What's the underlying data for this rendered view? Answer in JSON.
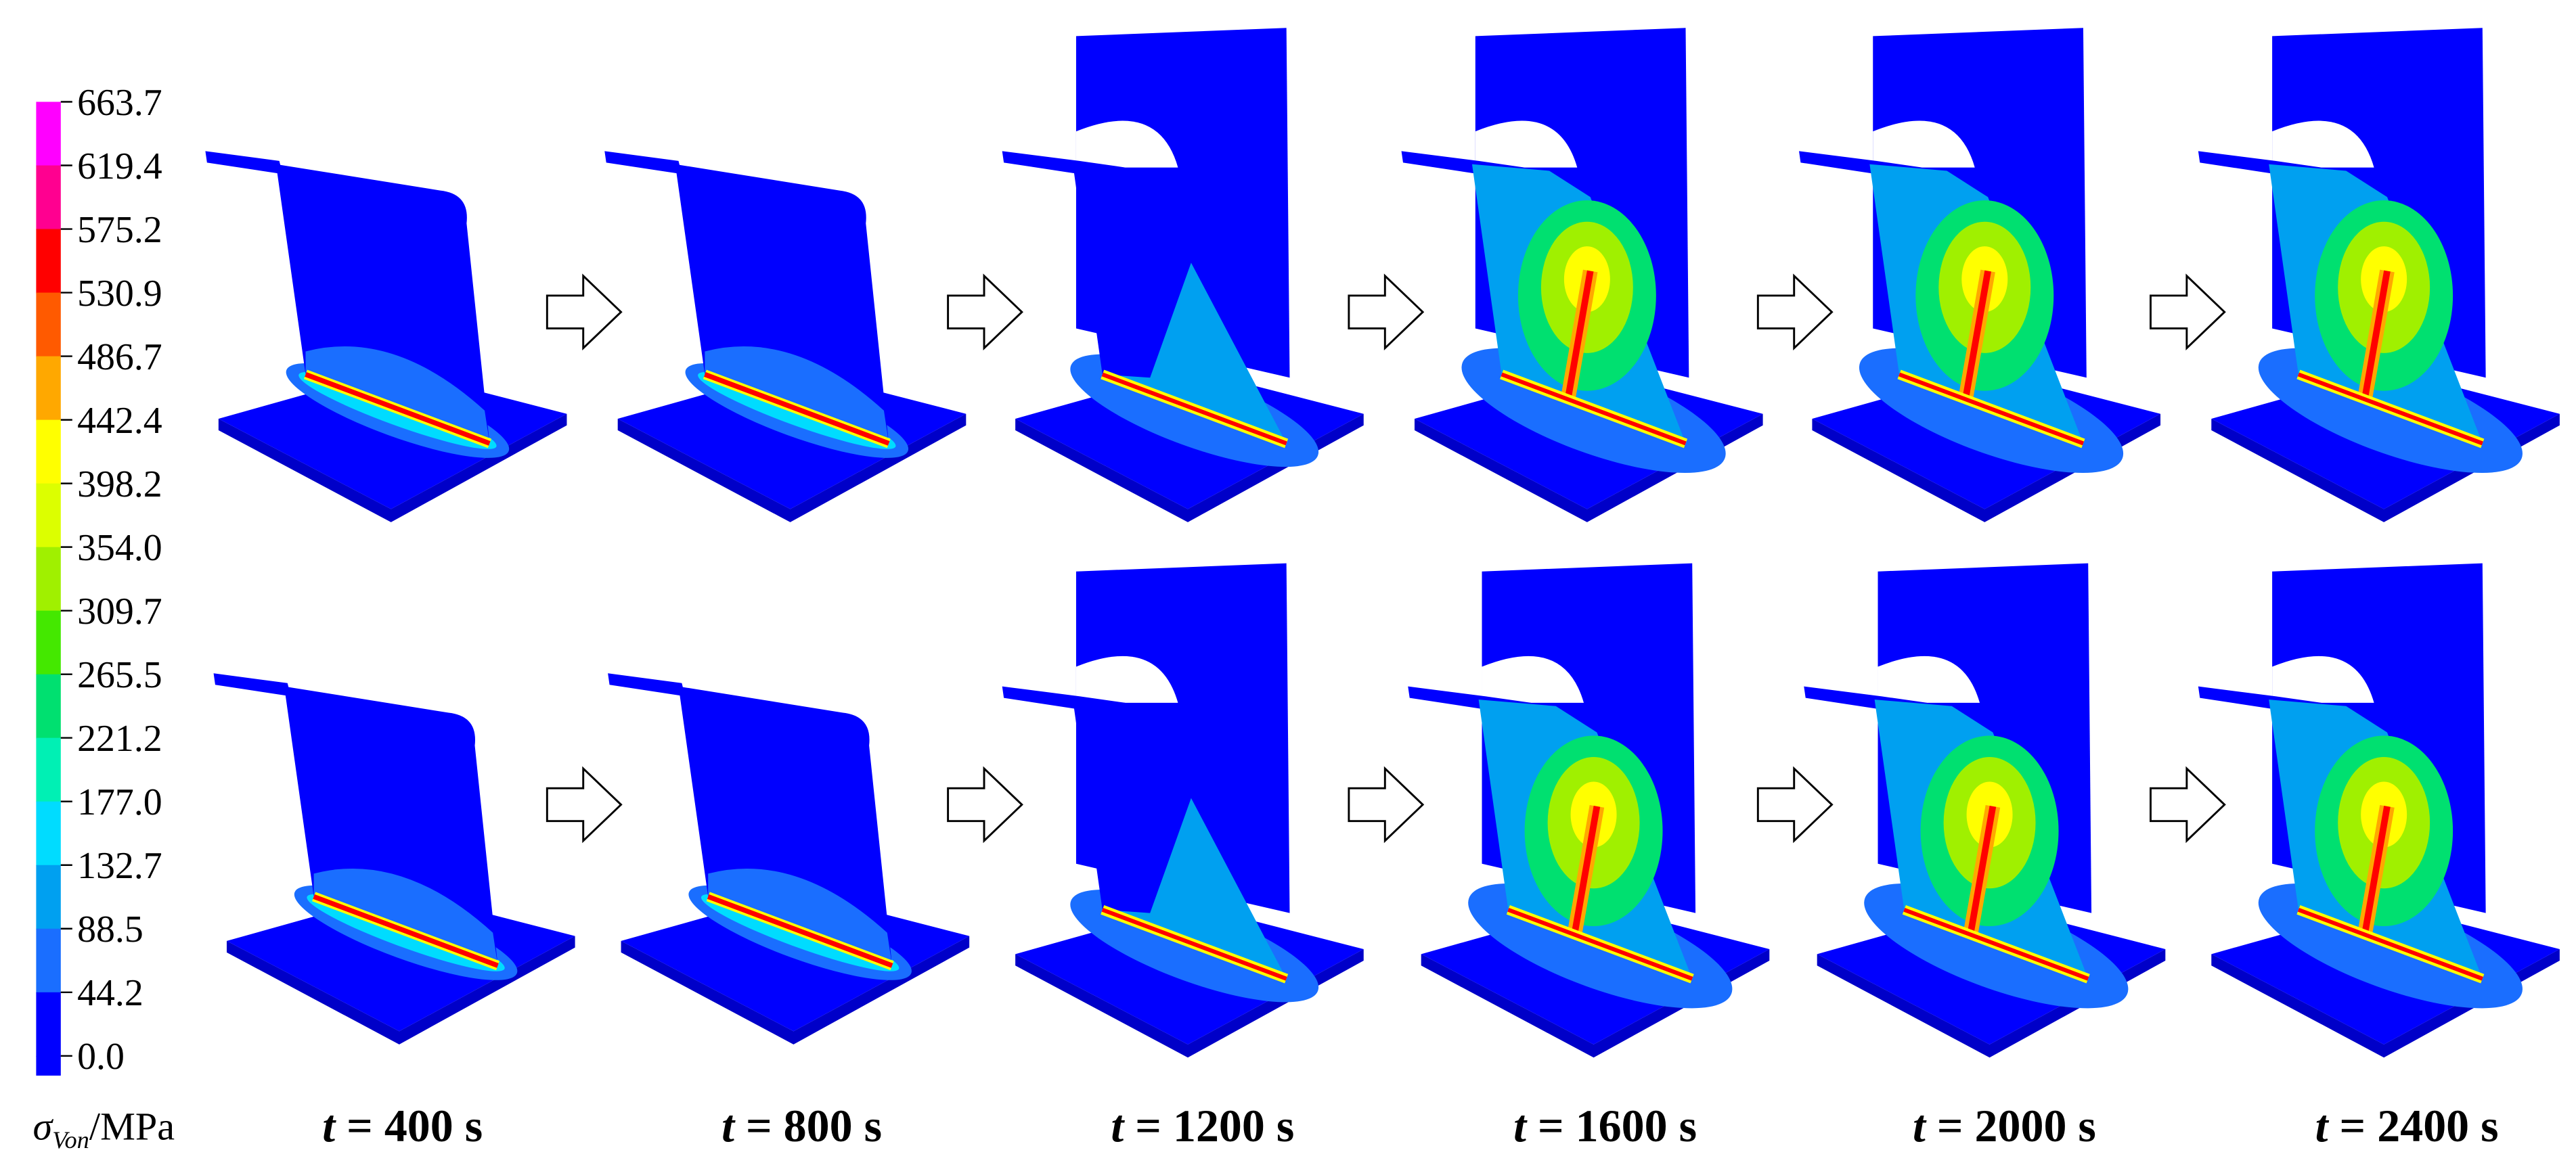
{
  "colorbar": {
    "ticks": [
      "663.7",
      "619.4",
      "575.2",
      "530.9",
      "486.7",
      "442.4",
      "398.2",
      "354.0",
      "309.7",
      "265.5",
      "221.2",
      "177.0",
      "132.7",
      "88.5",
      "44.2",
      "0.0"
    ],
    "colors": [
      "#ff00ff",
      "#ff0090",
      "#ff0000",
      "#ff5a00",
      "#ffa800",
      "#ffff00",
      "#dcff00",
      "#a0f000",
      "#44e800",
      "#00e070",
      "#00f0b4",
      "#00dcff",
      "#00a0f0",
      "#1a6eff",
      "#0000ff"
    ]
  },
  "axis_label": {
    "symbol": "σ",
    "subscript": "Von",
    "unit": "/MPa"
  },
  "time_variable": "t",
  "time_labels": [
    "= 400 s",
    "= 800 s",
    "= 1200 s",
    "= 1600 s",
    "= 2000 s",
    "= 2400 s"
  ]
}
